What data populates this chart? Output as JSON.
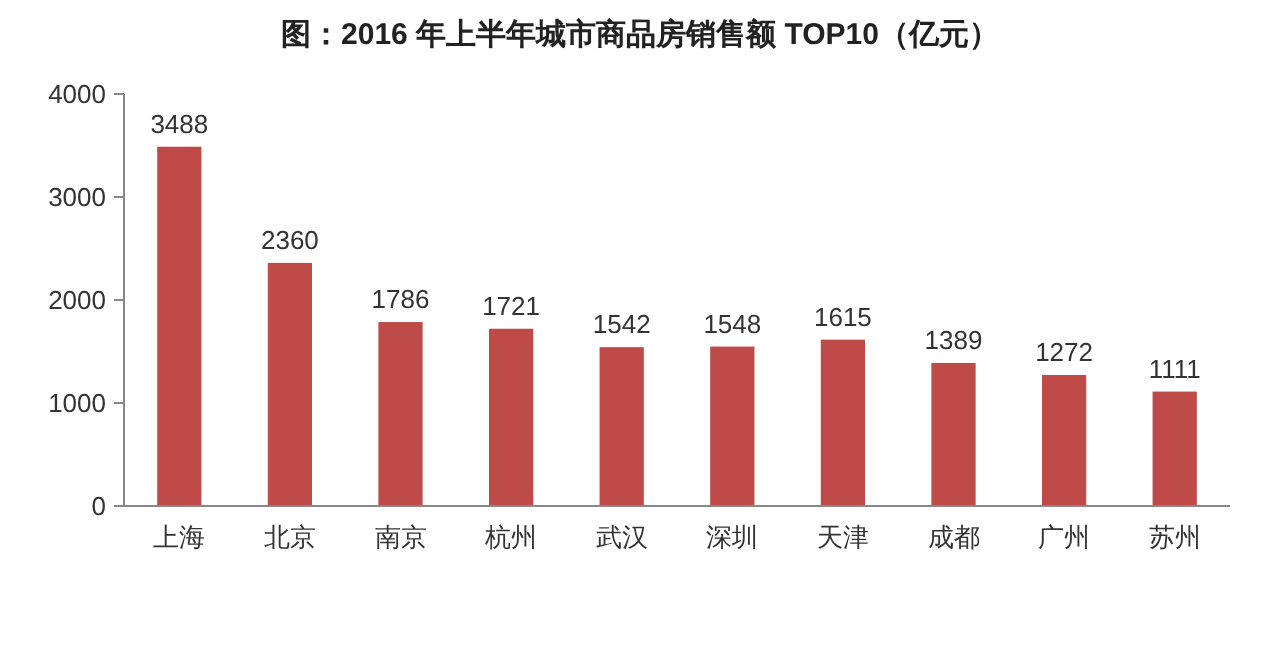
{
  "chart_data": {
    "type": "bar",
    "title": "图：2016 年上半年城市商品房销售额 TOP10（亿元）",
    "categories": [
      "上海",
      "北京",
      "南京",
      "杭州",
      "武汉",
      "深圳",
      "天津",
      "成都",
      "广州",
      "苏州"
    ],
    "values": [
      3488,
      2360,
      1786,
      1721,
      1542,
      1548,
      1615,
      1389,
      1272,
      1111
    ],
    "color": "#be4b48",
    "ylim": [
      0,
      4000
    ],
    "yticks": [
      0,
      1000,
      2000,
      3000,
      4000
    ],
    "grid": false,
    "data_labels": true
  }
}
